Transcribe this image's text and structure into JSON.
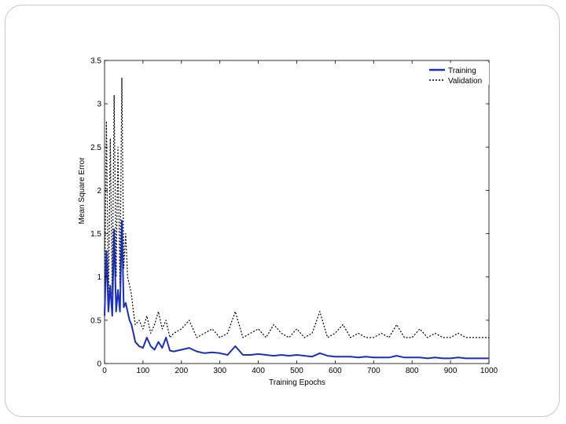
{
  "chart_data": {
    "type": "line",
    "title": "",
    "xlabel": "Training Epochs",
    "ylabel": "Mean Square Error",
    "xlim": [
      0,
      1000
    ],
    "ylim": [
      0,
      3.5
    ],
    "xticks": [
      0,
      100,
      200,
      300,
      400,
      500,
      600,
      700,
      800,
      900,
      1000
    ],
    "yticks": [
      0,
      0.5,
      1,
      1.5,
      2,
      2.5,
      3,
      3.5
    ],
    "x_tick_labels": [
      "0",
      "100",
      "200",
      "300",
      "400",
      "500",
      "600",
      "700",
      "800",
      "900",
      "1000"
    ],
    "y_tick_labels": [
      "0",
      "0.5",
      "1",
      "1.5",
      "2",
      "2.5",
      "3",
      "3.5"
    ],
    "grid": false,
    "legend_position": "top-right",
    "series": [
      {
        "name": "Training",
        "color": "#1a2fbf",
        "style": "solid",
        "x": [
          0,
          5,
          10,
          15,
          20,
          25,
          30,
          35,
          40,
          45,
          50,
          55,
          60,
          65,
          70,
          75,
          80,
          90,
          100,
          110,
          120,
          130,
          140,
          150,
          160,
          170,
          180,
          200,
          220,
          240,
          260,
          280,
          300,
          320,
          340,
          360,
          380,
          400,
          420,
          440,
          460,
          480,
          500,
          520,
          540,
          560,
          580,
          600,
          620,
          640,
          660,
          680,
          700,
          720,
          740,
          760,
          780,
          800,
          820,
          840,
          860,
          880,
          900,
          920,
          940,
          960,
          980,
          1000
        ],
        "y": [
          0.55,
          1.3,
          0.6,
          0.9,
          0.55,
          1.55,
          0.6,
          0.85,
          0.6,
          1.65,
          0.65,
          0.7,
          0.6,
          0.5,
          0.45,
          0.35,
          0.25,
          0.2,
          0.18,
          0.3,
          0.2,
          0.16,
          0.25,
          0.18,
          0.3,
          0.15,
          0.14,
          0.16,
          0.18,
          0.14,
          0.12,
          0.13,
          0.12,
          0.1,
          0.2,
          0.1,
          0.1,
          0.11,
          0.1,
          0.09,
          0.1,
          0.09,
          0.1,
          0.09,
          0.08,
          0.12,
          0.09,
          0.08,
          0.08,
          0.08,
          0.07,
          0.08,
          0.07,
          0.07,
          0.07,
          0.09,
          0.07,
          0.07,
          0.07,
          0.06,
          0.07,
          0.06,
          0.06,
          0.07,
          0.06,
          0.06,
          0.06,
          0.06
        ]
      },
      {
        "name": "Validation",
        "color": "#000000",
        "style": "dotted",
        "x": [
          0,
          5,
          10,
          15,
          20,
          25,
          30,
          35,
          40,
          45,
          50,
          55,
          60,
          65,
          70,
          75,
          80,
          90,
          100,
          110,
          120,
          130,
          140,
          150,
          160,
          170,
          180,
          200,
          220,
          240,
          260,
          280,
          300,
          320,
          340,
          360,
          380,
          400,
          420,
          440,
          460,
          480,
          500,
          520,
          540,
          560,
          580,
          600,
          620,
          640,
          660,
          680,
          700,
          720,
          740,
          760,
          780,
          800,
          820,
          840,
          860,
          880,
          900,
          920,
          940,
          960,
          980,
          1000
        ],
        "y": [
          0.6,
          2.8,
          0.7,
          2.6,
          0.8,
          3.1,
          1.0,
          2.5,
          0.9,
          3.3,
          1.1,
          1.5,
          1.0,
          0.9,
          0.8,
          0.6,
          0.45,
          0.5,
          0.4,
          0.55,
          0.35,
          0.45,
          0.6,
          0.4,
          0.5,
          0.3,
          0.35,
          0.4,
          0.5,
          0.3,
          0.35,
          0.4,
          0.3,
          0.35,
          0.6,
          0.3,
          0.35,
          0.4,
          0.3,
          0.45,
          0.35,
          0.3,
          0.4,
          0.3,
          0.35,
          0.6,
          0.3,
          0.35,
          0.45,
          0.3,
          0.35,
          0.3,
          0.3,
          0.35,
          0.3,
          0.45,
          0.3,
          0.3,
          0.4,
          0.3,
          0.35,
          0.3,
          0.3,
          0.35,
          0.3,
          0.3,
          0.3,
          0.3
        ]
      }
    ]
  }
}
